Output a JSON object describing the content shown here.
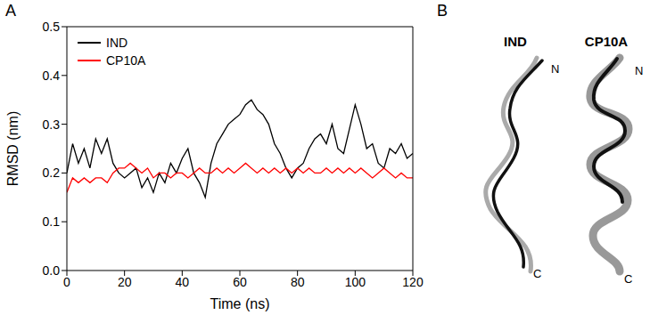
{
  "chart_data": {
    "type": "line",
    "panel": "A",
    "x_label": "Time (ns)",
    "y_label": "RMSD (nm)",
    "x": [
      0,
      2,
      4,
      6,
      8,
      10,
      12,
      14,
      16,
      18,
      20,
      22,
      24,
      26,
      28,
      30,
      32,
      34,
      36,
      38,
      40,
      42,
      44,
      46,
      48,
      50,
      52,
      54,
      56,
      58,
      60,
      62,
      64,
      66,
      68,
      70,
      72,
      74,
      76,
      78,
      80,
      82,
      84,
      86,
      88,
      90,
      92,
      94,
      96,
      98,
      100,
      102,
      104,
      106,
      108,
      110,
      112,
      114,
      116,
      118,
      120
    ],
    "series": [
      {
        "name": "IND",
        "color": "#000000",
        "values": [
          0.2,
          0.26,
          0.22,
          0.25,
          0.21,
          0.27,
          0.24,
          0.27,
          0.22,
          0.2,
          0.19,
          0.2,
          0.21,
          0.17,
          0.19,
          0.16,
          0.2,
          0.18,
          0.22,
          0.2,
          0.23,
          0.25,
          0.2,
          0.18,
          0.15,
          0.22,
          0.26,
          0.28,
          0.3,
          0.31,
          0.32,
          0.34,
          0.35,
          0.33,
          0.32,
          0.3,
          0.26,
          0.24,
          0.21,
          0.19,
          0.21,
          0.22,
          0.25,
          0.27,
          0.28,
          0.26,
          0.3,
          0.25,
          0.24,
          0.29,
          0.34,
          0.3,
          0.25,
          0.26,
          0.22,
          0.21,
          0.25,
          0.24,
          0.26,
          0.23,
          0.24
        ]
      },
      {
        "name": "CP10A",
        "color": "#ff0000",
        "values": [
          0.16,
          0.19,
          0.18,
          0.19,
          0.18,
          0.19,
          0.19,
          0.18,
          0.2,
          0.21,
          0.21,
          0.22,
          0.21,
          0.2,
          0.21,
          0.19,
          0.2,
          0.2,
          0.19,
          0.2,
          0.2,
          0.19,
          0.2,
          0.21,
          0.2,
          0.2,
          0.21,
          0.2,
          0.21,
          0.2,
          0.21,
          0.22,
          0.21,
          0.2,
          0.21,
          0.2,
          0.21,
          0.2,
          0.21,
          0.2,
          0.21,
          0.2,
          0.21,
          0.2,
          0.2,
          0.21,
          0.2,
          0.21,
          0.2,
          0.21,
          0.2,
          0.21,
          0.2,
          0.19,
          0.2,
          0.21,
          0.2,
          0.19,
          0.2,
          0.19,
          0.19
        ]
      }
    ],
    "xlim": [
      0,
      120
    ],
    "xticks": [
      0,
      20,
      40,
      60,
      80,
      100,
      120
    ],
    "ylim": [
      0,
      0.5
    ],
    "yticks": [
      {
        "value": 0,
        "label": "0.0"
      },
      0.1,
      0.2,
      0.3,
      0.4,
      0.5
    ],
    "legend": "upper left",
    "grid": false
  },
  "panel_b": {
    "panel": "B",
    "structures": [
      {
        "label": "IND",
        "n_label": "N",
        "c_label": "C"
      },
      {
        "label": "CP10A",
        "n_label": "N",
        "c_label": "C"
      }
    ]
  }
}
